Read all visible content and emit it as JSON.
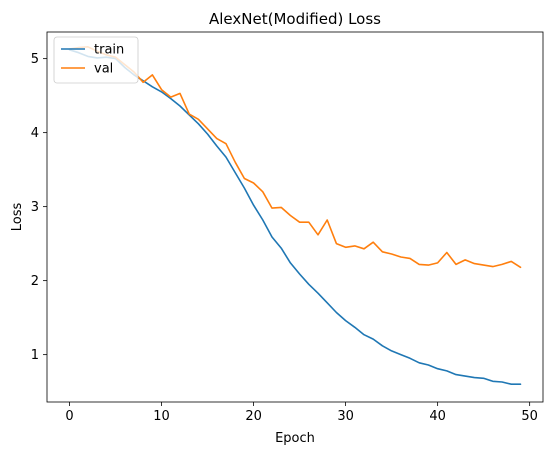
{
  "chart_data": {
    "type": "line",
    "title": "AlexNet(Modified) Loss",
    "xlabel": "Epoch",
    "ylabel": "Loss",
    "xlim": [
      -2.45,
      51.45
    ],
    "ylim": [
      0.36,
      5.36
    ],
    "xticks": [
      0,
      10,
      20,
      30,
      40,
      50
    ],
    "yticks": [
      1,
      2,
      3,
      4,
      5
    ],
    "grid": false,
    "legend_position": "top-left",
    "series": [
      {
        "name": "train",
        "color": "#1f77b4",
        "x": [
          0,
          1,
          2,
          3,
          4,
          5,
          6,
          7,
          8,
          9,
          10,
          11,
          12,
          13,
          14,
          15,
          16,
          17,
          18,
          19,
          20,
          21,
          22,
          23,
          24,
          25,
          26,
          27,
          28,
          29,
          30,
          31,
          32,
          33,
          34,
          35,
          36,
          37,
          38,
          39,
          40,
          41,
          42,
          43,
          44,
          45,
          46,
          47,
          48,
          49
        ],
        "values": [
          5.12,
          5.08,
          5.03,
          5.01,
          5.02,
          5.0,
          4.88,
          4.78,
          4.7,
          4.62,
          4.55,
          4.46,
          4.36,
          4.24,
          4.12,
          3.98,
          3.82,
          3.67,
          3.46,
          3.25,
          3.02,
          2.82,
          2.59,
          2.44,
          2.24,
          2.09,
          1.95,
          1.83,
          1.7,
          1.57,
          1.46,
          1.37,
          1.27,
          1.21,
          1.12,
          1.05,
          1.0,
          0.95,
          0.89,
          0.86,
          0.81,
          0.78,
          0.73,
          0.71,
          0.69,
          0.68,
          0.64,
          0.63,
          0.6,
          0.6
        ]
      },
      {
        "name": "val",
        "color": "#ff7f0e",
        "x": [
          0,
          1,
          2,
          3,
          4,
          5,
          6,
          7,
          8,
          9,
          10,
          11,
          12,
          13,
          14,
          15,
          16,
          17,
          18,
          19,
          20,
          21,
          22,
          23,
          24,
          25,
          26,
          27,
          28,
          29,
          30,
          31,
          32,
          33,
          34,
          35,
          36,
          37,
          38,
          39,
          40,
          41,
          42,
          43,
          44,
          45,
          46,
          47,
          48,
          49
        ],
        "values": [
          5.13,
          5.15,
          5.16,
          5.1,
          5.05,
          5.02,
          4.92,
          4.82,
          4.68,
          4.78,
          4.58,
          4.48,
          4.53,
          4.25,
          4.18,
          4.05,
          3.92,
          3.85,
          3.6,
          3.38,
          3.32,
          3.2,
          2.98,
          2.99,
          2.88,
          2.79,
          2.79,
          2.62,
          2.82,
          2.5,
          2.45,
          2.47,
          2.43,
          2.52,
          2.39,
          2.36,
          2.32,
          2.3,
          2.22,
          2.21,
          2.24,
          2.38,
          2.22,
          2.28,
          2.23,
          2.21,
          2.19,
          2.22,
          2.26,
          2.18
        ]
      }
    ]
  }
}
